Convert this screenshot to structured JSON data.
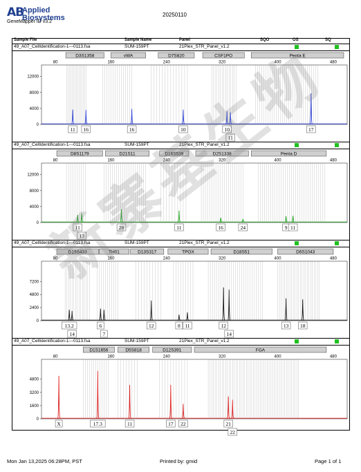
{
  "header": {
    "logo_mark": "AB",
    "logo_line1": "Applied",
    "logo_line2": "Biosystems",
    "app_name": "GeneMapper ID v3.2",
    "run_date": "20250110"
  },
  "columns": {
    "sample_file": "Sample File",
    "sample_name": "Sample Name",
    "panel": "Panel",
    "sqo": "SQO",
    "os": "OS",
    "sq": "SQ"
  },
  "colors": {
    "blue": "#2b3fd8",
    "green": "#1fa51f",
    "black": "#111111",
    "red": "#dd1e1e",
    "flag": "#21c021",
    "bin": "#c8c8c8"
  },
  "x_axis_ticks": [
    "80",
    "160",
    "240",
    "320",
    "400",
    "480"
  ],
  "panels": [
    {
      "sample_file": "49_A07_CellIdentification-1---0113.fsa",
      "sample_name": "SUM-159PT",
      "panel": "21Plex_STR_Panel_v1.2",
      "dye": "blue",
      "loci": [
        "D3S1358",
        "vWA",
        "D7S820",
        "CSF1PO",
        "Penta E"
      ],
      "y_ticks": [
        "12000",
        "8000",
        "4000",
        "0"
      ],
      "alleles": [
        "11",
        "16",
        "16",
        "10",
        "10",
        "11",
        "17"
      ]
    },
    {
      "sample_file": "49_A07_CellIdentification-1---0113.fsa",
      "sample_name": "SUM-159PT",
      "panel": "21Plex_STR_Panel_v1.2",
      "dye": "green",
      "loci": [
        "D8S1179",
        "D21S11",
        "D16S539",
        "D2S1338",
        "Penta D"
      ],
      "y_ticks": [
        "12000",
        "8000",
        "4000",
        "0"
      ],
      "alleles": [
        "11",
        "13",
        "28",
        "11",
        "16",
        "24",
        "9",
        "11"
      ]
    },
    {
      "sample_file": "49_A07_CellIdentification-1---0113.fsa",
      "sample_name": "SUM-159PT",
      "panel": "21Plex_STR_Panel_v1.2",
      "dye": "black",
      "loci": [
        "D19S433",
        "TH01",
        "D13S317",
        "TPOX",
        "D18S51",
        "D6S1043"
      ],
      "y_ticks": [
        "7200",
        "4800",
        "2400",
        "0"
      ],
      "alleles": [
        "13.2",
        "14",
        "6",
        "7",
        "12",
        "8",
        "11",
        "12",
        "14",
        "13",
        "18"
      ]
    },
    {
      "sample_file": "49_A07_CellIdentification-1---0113.fsa",
      "sample_name": "SUM-159PT",
      "panel": "21Plex_STR_Panel_v1.2",
      "dye": "red",
      "loci": [
        "D1S1656",
        "D5S818",
        "D12S391",
        "FGA"
      ],
      "y_ticks": [
        "4800",
        "3200",
        "1600",
        "0"
      ],
      "alleles": [
        "X",
        "17.3",
        "11",
        "17",
        "22",
        "21",
        "22"
      ]
    }
  ],
  "chart_data": [
    {
      "type": "line",
      "dye": "blue",
      "xlim": [
        60,
        500
      ],
      "ylim": [
        0,
        12800
      ],
      "y_ticks": [
        0,
        4000,
        8000,
        12000
      ],
      "peaks": [
        {
          "x": 105,
          "height": 3700
        },
        {
          "x": 124,
          "height": 3600
        },
        {
          "x": 190,
          "height": 3900
        },
        {
          "x": 264,
          "height": 3700
        },
        {
          "x": 327,
          "height": 3300
        },
        {
          "x": 332,
          "height": 3000
        },
        {
          "x": 448,
          "height": 7800
        }
      ],
      "alleles": [
        {
          "x": 105,
          "label": "11",
          "row": 0
        },
        {
          "x": 124,
          "label": "16",
          "row": 0
        },
        {
          "x": 190,
          "label": "16",
          "row": 0
        },
        {
          "x": 264,
          "label": "10",
          "row": 0
        },
        {
          "x": 327,
          "label": "10",
          "row": 0
        },
        {
          "x": 332,
          "label": "11",
          "row": 1
        },
        {
          "x": 448,
          "label": "17",
          "row": 0
        }
      ],
      "bins": [
        [
          96,
          124,
          2
        ],
        [
          148,
          190,
          3
        ],
        [
          218,
          270,
          4
        ],
        [
          305,
          340,
          2.5
        ],
        [
          368,
          460,
          3
        ]
      ],
      "locus_spans": [
        [
          95,
          150
        ],
        [
          160,
          210
        ],
        [
          228,
          280
        ],
        [
          292,
          352
        ],
        [
          362,
          495
        ]
      ]
    },
    {
      "type": "line",
      "dye": "green",
      "xlim": [
        60,
        500
      ],
      "ylim": [
        0,
        12800
      ],
      "y_ticks": [
        0,
        4000,
        8000,
        12000
      ],
      "peaks": [
        {
          "x": 112,
          "height": 1900
        },
        {
          "x": 118,
          "height": 2300
        },
        {
          "x": 175,
          "height": 3300
        },
        {
          "x": 258,
          "height": 3000
        },
        {
          "x": 318,
          "height": 1200
        },
        {
          "x": 350,
          "height": 900
        },
        {
          "x": 412,
          "height": 1600
        },
        {
          "x": 422,
          "height": 1700
        }
      ],
      "alleles": [
        {
          "x": 112,
          "label": "11",
          "row": 0
        },
        {
          "x": 118,
          "label": "13",
          "row": 1
        },
        {
          "x": 175,
          "label": "28",
          "row": 0
        },
        {
          "x": 258,
          "label": "11",
          "row": 0
        },
        {
          "x": 318,
          "label": "16",
          "row": 0
        },
        {
          "x": 350,
          "label": "24",
          "row": 0
        },
        {
          "x": 412,
          "label": "9",
          "row": 0
        },
        {
          "x": 422,
          "label": "11",
          "row": 0
        }
      ],
      "bins": [
        [
          96,
          124,
          3
        ],
        [
          150,
          210,
          3
        ],
        [
          232,
          268,
          4
        ],
        [
          290,
          350,
          3
        ],
        [
          372,
          470,
          3
        ]
      ],
      "locus_spans": [
        [
          82,
          148
        ],
        [
          152,
          215
        ],
        [
          230,
          272
        ],
        [
          282,
          358
        ],
        [
          362,
          470
        ]
      ]
    },
    {
      "type": "line",
      "dye": "black",
      "xlim": [
        60,
        500
      ],
      "ylim": [
        0,
        9400
      ],
      "y_ticks": [
        0,
        2400,
        4800,
        7200
      ],
      "peaks": [
        {
          "x": 100,
          "height": 2000
        },
        {
          "x": 104,
          "height": 1800
        },
        {
          "x": 145,
          "height": 2200
        },
        {
          "x": 150,
          "height": 2000
        },
        {
          "x": 218,
          "height": 3700
        },
        {
          "x": 258,
          "height": 1100
        },
        {
          "x": 270,
          "height": 1500
        },
        {
          "x": 322,
          "height": 6100
        },
        {
          "x": 330,
          "height": 5700
        },
        {
          "x": 412,
          "height": 4100
        },
        {
          "x": 436,
          "height": 3900
        }
      ],
      "alleles": [
        {
          "x": 100,
          "label": "13.2",
          "row": 0
        },
        {
          "x": 104,
          "label": "14",
          "row": 1
        },
        {
          "x": 145,
          "label": "6",
          "row": 0
        },
        {
          "x": 150,
          "label": "7",
          "row": 1
        },
        {
          "x": 218,
          "label": "12",
          "row": 0
        },
        {
          "x": 258,
          "label": "8",
          "row": 0
        },
        {
          "x": 270,
          "label": "11",
          "row": 0
        },
        {
          "x": 322,
          "label": "12",
          "row": 0
        },
        {
          "x": 330,
          "label": "14",
          "row": 1
        },
        {
          "x": 412,
          "label": "13",
          "row": 0
        },
        {
          "x": 436,
          "label": "18",
          "row": 0
        }
      ],
      "bins": [
        [
          94,
          130,
          2.5
        ],
        [
          140,
          170,
          3
        ],
        [
          196,
          232,
          4
        ],
        [
          250,
          280,
          3.5
        ],
        [
          300,
          378,
          3
        ],
        [
          400,
          460,
          2.5
        ]
      ],
      "locus_spans": [
        [
          82,
          142
        ],
        [
          143,
          186
        ],
        [
          188,
          236
        ],
        [
          242,
          300
        ],
        [
          304,
          392
        ],
        [
          400,
          480
        ]
      ]
    },
    {
      "type": "line",
      "dye": "red",
      "xlim": [
        60,
        500
      ],
      "ylim": [
        0,
        6200
      ],
      "y_ticks": [
        0,
        1600,
        3200,
        4800
      ],
      "peaks": [
        {
          "x": 85,
          "height": 5200
        },
        {
          "x": 141,
          "height": 5800
        },
        {
          "x": 187,
          "height": 4100
        },
        {
          "x": 246,
          "height": 4100
        },
        {
          "x": 264,
          "height": 1800
        },
        {
          "x": 329,
          "height": 2700
        },
        {
          "x": 335,
          "height": 2300
        }
      ],
      "alleles": [
        {
          "x": 85,
          "label": "X",
          "row": 0
        },
        {
          "x": 141,
          "label": "17.3",
          "row": 0
        },
        {
          "x": 187,
          "label": "11",
          "row": 0
        },
        {
          "x": 246,
          "label": "17",
          "row": 0
        },
        {
          "x": 264,
          "label": "22",
          "row": 0
        },
        {
          "x": 329,
          "label": "21",
          "row": 0
        },
        {
          "x": 335,
          "label": "22",
          "row": 1
        }
      ],
      "bins": [
        [
          120,
          158,
          3
        ],
        [
          170,
          200,
          4
        ],
        [
          230,
          272,
          4
        ],
        [
          300,
          430,
          2.5
        ]
      ],
      "locus_spans": [
        [
          120,
          165
        ],
        [
          170,
          215
        ],
        [
          220,
          276
        ],
        [
          280,
          470
        ]
      ]
    }
  ],
  "footer": {
    "timestamp": "Mon Jan 13,2025 06:28PM, PST",
    "printed_by": "Printed by: gmid",
    "page": "Page 1 of 1"
  },
  "watermark": "新寨基生物"
}
